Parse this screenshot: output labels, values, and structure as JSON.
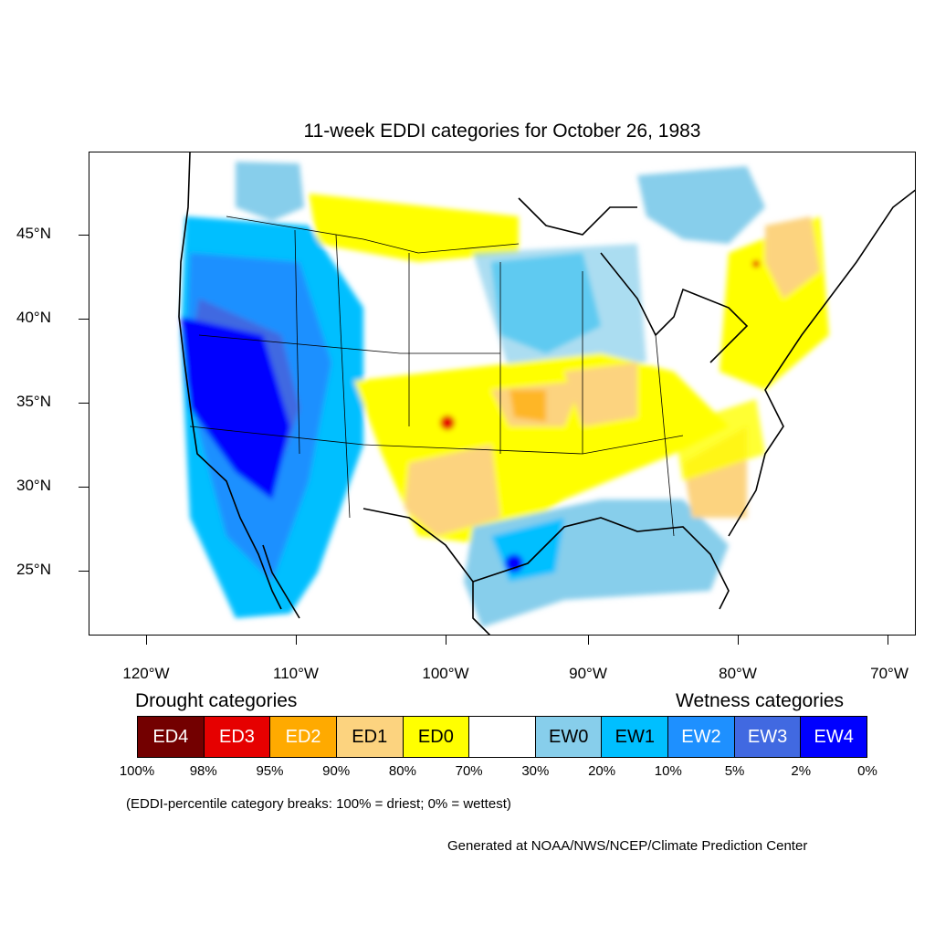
{
  "map": {
    "title": "11-week EDDI categories for October 26, 1983",
    "lat_labels": [
      "45°N",
      "40°N",
      "35°N",
      "30°N",
      "25°N"
    ],
    "lon_labels": [
      "120°W",
      "110°W",
      "100°W",
      "90°W",
      "80°W",
      "70°W"
    ]
  },
  "legend": {
    "drought_heading": "Drought categories",
    "wetness_heading": "Wetness categories",
    "categories": [
      {
        "label": "ED4",
        "color": "#730000",
        "text_color": "#ffffff"
      },
      {
        "label": "ED3",
        "color": "#e60000",
        "text_color": "#ffffff"
      },
      {
        "label": "ED2",
        "color": "#ffaa00",
        "text_color": "#ffffff"
      },
      {
        "label": "ED1",
        "color": "#fcd37f",
        "text_color": "#000000"
      },
      {
        "label": "ED0",
        "color": "#ffff00",
        "text_color": "#000000"
      },
      {
        "label": "",
        "color": "#ffffff",
        "text_color": "#000000"
      },
      {
        "label": "EW0",
        "color": "#87ceeb",
        "text_color": "#000000"
      },
      {
        "label": "EW1",
        "color": "#00bfff",
        "text_color": "#000000"
      },
      {
        "label": "EW2",
        "color": "#1e90ff",
        "text_color": "#ffffff"
      },
      {
        "label": "EW3",
        "color": "#4169e1",
        "text_color": "#ffffff"
      },
      {
        "label": "EW4",
        "color": "#0000ff",
        "text_color": "#ffffff"
      }
    ],
    "breaks": [
      "100%",
      "98%",
      "95%",
      "90%",
      "80%",
      "70%",
      "30%",
      "20%",
      "10%",
      "5%",
      "2%",
      "0%"
    ],
    "note": "(EDDI-percentile category breaks: 100% = driest; 0% = wettest)"
  },
  "credit": "Generated at NOAA/NWS/NCEP/Climate Prediction Center"
}
